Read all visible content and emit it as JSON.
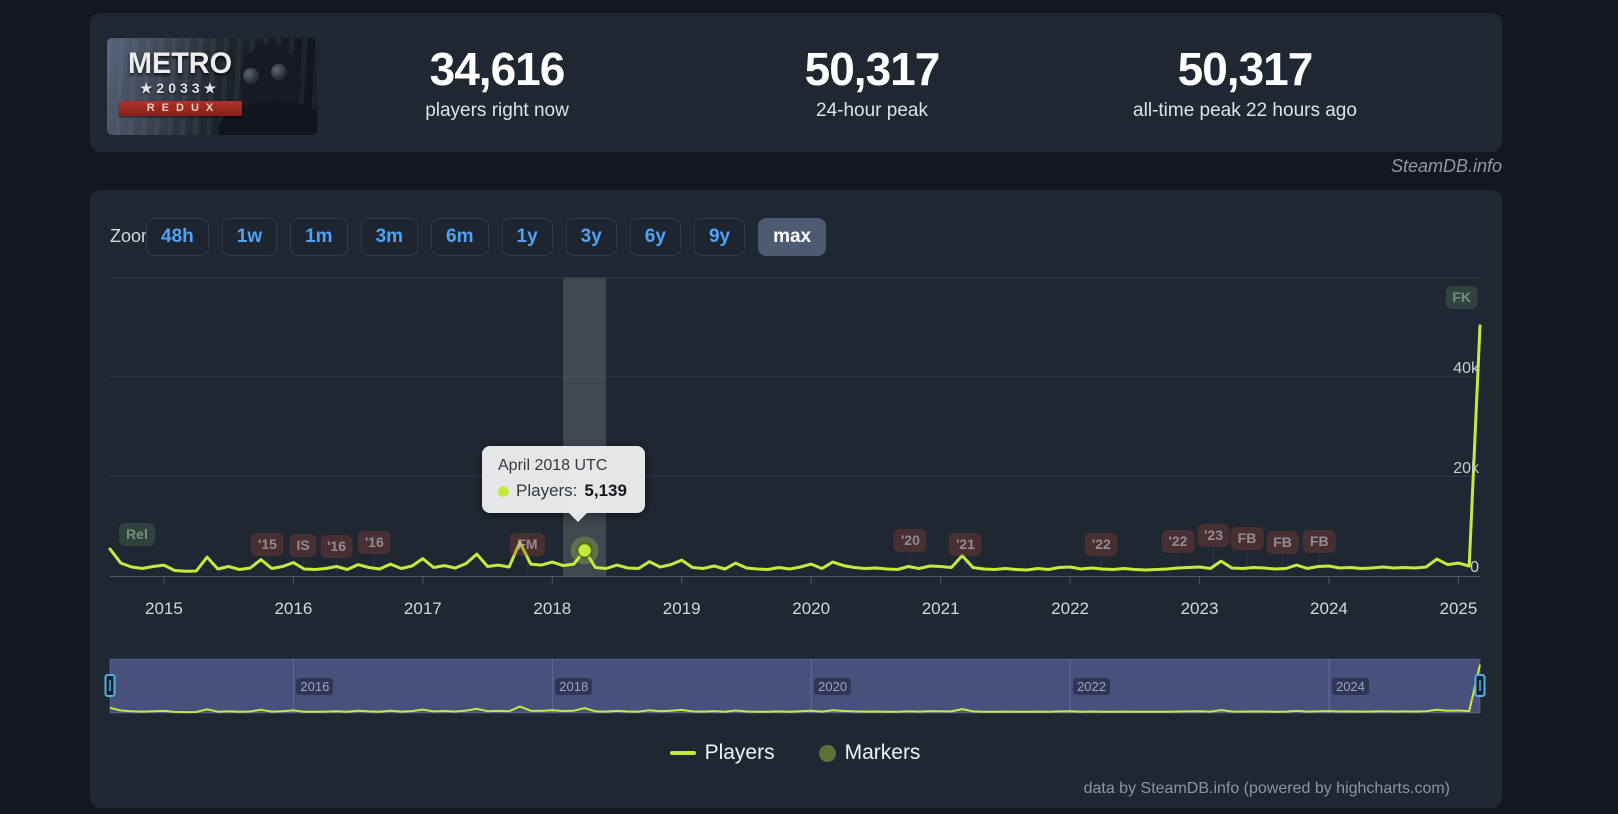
{
  "header": {
    "game": {
      "title_line1": "METRO",
      "title_line2": "★2033★",
      "title_line3": "REDUX"
    },
    "stats": [
      {
        "value": "34,616",
        "label": "players right now"
      },
      {
        "value": "50,317",
        "label": "24-hour peak"
      },
      {
        "value": "50,317",
        "label": "all-time peak 22 hours ago"
      }
    ]
  },
  "watermark": "SteamDB.info",
  "toolbar": {
    "zoom_label": "Zoom",
    "buttons": [
      "48h",
      "1w",
      "1m",
      "3m",
      "6m",
      "1y",
      "3y",
      "6y",
      "9y",
      "max"
    ],
    "active": "max"
  },
  "tooltip": {
    "title": "April 2018 UTC",
    "series_label": "Players:",
    "value": "5,139"
  },
  "chart_data": {
    "type": "line",
    "series": [
      {
        "name": "Players",
        "color": "#c6ea3b",
        "start_month": "2014-08",
        "interval": "month",
        "values": [
          5400,
          2600,
          1800,
          1500,
          1900,
          2200,
          1100,
          950,
          1000,
          3800,
          1400,
          1900,
          1300,
          1600,
          3300,
          1500,
          1900,
          2700,
          1400,
          1300,
          1500,
          1900,
          1300,
          2300,
          1700,
          1400,
          2400,
          1500,
          2000,
          3500,
          1700,
          2100,
          1600,
          2500,
          4400,
          1900,
          2200,
          1800,
          6800,
          2400,
          2200,
          2800,
          2100,
          2400,
          5139,
          1700,
          1500,
          2200,
          1600,
          1500,
          2900,
          1800,
          2300,
          3200,
          1700,
          1500,
          2000,
          1400,
          2600,
          1600,
          1400,
          1300,
          1700,
          1400,
          1800,
          2400,
          1500,
          2800,
          2100,
          1700,
          1500,
          1600,
          1400,
          1300,
          1900,
          1500,
          2000,
          1900,
          1700,
          4100,
          1700,
          1400,
          1300,
          1500,
          1300,
          1200,
          1500,
          1300,
          1700,
          1800,
          1400,
          1600,
          1400,
          1300,
          1500,
          1300,
          1200,
          1300,
          1400,
          1600,
          1700,
          1800,
          1500,
          3000,
          1600,
          1500,
          1700,
          1600,
          1400,
          1500,
          2200,
          1500,
          1900,
          2000,
          1600,
          1700,
          1500,
          1600,
          1800,
          1600,
          1700,
          1600,
          1800,
          3400,
          2300,
          2600,
          2000,
          50317
        ]
      }
    ],
    "markers_series_name": "Markers",
    "tooltip_point": {
      "month_index": 44,
      "label": "April 2018 UTC",
      "value": 5139
    },
    "ylim": [
      0,
      60000
    ],
    "yticks": [
      {
        "label": "0",
        "value": 0
      },
      {
        "label": "20k",
        "value": 20000
      },
      {
        "label": "40k",
        "value": 40000
      }
    ],
    "xticks": [
      "2015",
      "2016",
      "2017",
      "2018",
      "2019",
      "2020",
      "2021",
      "2022",
      "2023",
      "2024",
      "2025"
    ],
    "grid": true,
    "flags": [
      {
        "label": "Rel",
        "month_index": 2.5,
        "y": 534,
        "kind": "green",
        "pole": false
      },
      {
        "label": "'15",
        "month_index": 14.6,
        "y": 544,
        "kind": "red",
        "pole": true
      },
      {
        "label": "IS",
        "month_index": 17.9,
        "y": 545,
        "kind": "red",
        "pole": true
      },
      {
        "label": "'16",
        "month_index": 21.0,
        "y": 546,
        "kind": "red",
        "pole": true
      },
      {
        "label": "'16",
        "month_index": 24.5,
        "y": 542,
        "kind": "red",
        "pole": true
      },
      {
        "label": "FM",
        "month_index": 38.7,
        "y": 544,
        "kind": "red",
        "pole": true
      },
      {
        "label": "'20",
        "month_index": 74.2,
        "y": 540,
        "kind": "red",
        "pole": true
      },
      {
        "label": "'21",
        "month_index": 79.3,
        "y": 544,
        "kind": "red",
        "pole": true
      },
      {
        "label": "'22",
        "month_index": 91.9,
        "y": 544,
        "kind": "red",
        "pole": true
      },
      {
        "label": "'22",
        "month_index": 99.0,
        "y": 541,
        "kind": "red",
        "pole": true
      },
      {
        "label": "'23",
        "month_index": 102.3,
        "y": 535,
        "kind": "red",
        "pole": true
      },
      {
        "label": "FB",
        "month_index": 105.4,
        "y": 538,
        "kind": "red",
        "pole": true
      },
      {
        "label": "FB",
        "month_index": 108.7,
        "y": 542,
        "kind": "red",
        "pole": true
      },
      {
        "label": "FB",
        "month_index": 112.1,
        "y": 541,
        "kind": "red",
        "pole": true
      },
      {
        "label": "FK",
        "month_index": 125.3,
        "y": 297,
        "kind": "green",
        "pole": false
      }
    ],
    "navigator": {
      "labels": [
        "2016",
        "2018",
        "2020",
        "2022",
        "2024"
      ],
      "mask_color": "rgba(105,117,185,0.55)",
      "handle_color": "#54aede"
    }
  },
  "legend": {
    "items": [
      {
        "label": "Players",
        "color": "#c6ea3b",
        "type": "line"
      },
      {
        "label": "Markers",
        "color": "#5c7137",
        "type": "circle"
      }
    ]
  },
  "footer": {
    "credit": "data by SteamDB.info (powered by highcharts.com)"
  }
}
